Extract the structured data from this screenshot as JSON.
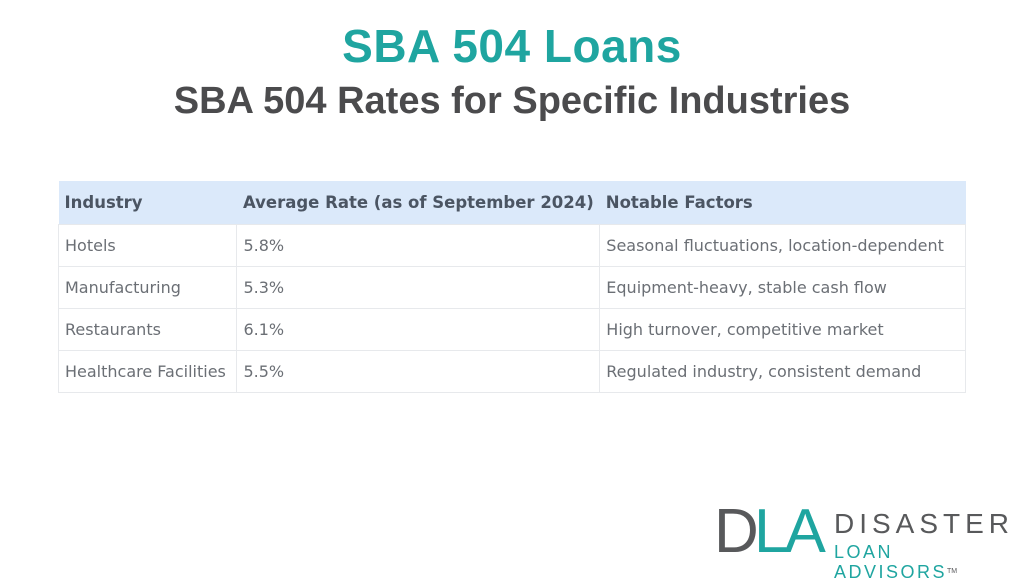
{
  "header": {
    "title": "SBA 504 Loans",
    "subtitle": "SBA 504 Rates for Specific Industries"
  },
  "table": {
    "columns": [
      "Industry",
      "Average Rate (as of September 2024)",
      "Notable Factors"
    ],
    "rows": [
      [
        "Hotels",
        "5.8%",
        "Seasonal fluctuations, location-dependent"
      ],
      [
        "Manufacturing",
        "5.3%",
        "Equipment-heavy, stable cash flow"
      ],
      [
        "Restaurants",
        "6.1%",
        "High turnover, competitive market"
      ],
      [
        "Healthcare Facilities",
        "5.5%",
        "Regulated industry, consistent demand"
      ]
    ]
  },
  "logo": {
    "mark_d": "D",
    "mark_la": "LA",
    "line1": "DISASTER",
    "line2": "LOAN ADVISORS",
    "trademark": "TM"
  },
  "colors": {
    "accent": "#1fa5a0",
    "dark": "#4b4b4d",
    "header_bg": "#dbe9fa"
  }
}
